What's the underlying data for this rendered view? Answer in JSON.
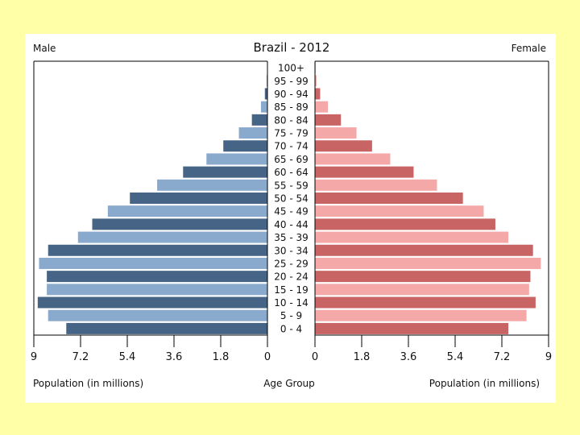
{
  "chart_data": {
    "type": "bar",
    "title": "Brazil - 2012",
    "left_label": "Male",
    "right_label": "Female",
    "xlabel_left": "Population (in millions)",
    "xlabel_center": "Age Group",
    "xlabel_right": "Population (in millions)",
    "xlim": [
      0,
      9
    ],
    "ticks": [
      "9",
      "7.2",
      "5.4",
      "3.6",
      "1.8",
      "0"
    ],
    "ticks_right": [
      "0",
      "1.8",
      "3.6",
      "5.4",
      "7.2",
      "9"
    ],
    "categories": [
      "0 - 4",
      "5 - 9",
      "10 - 14",
      "15 - 19",
      "20 - 24",
      "25 - 29",
      "30 - 34",
      "35 - 39",
      "40 - 44",
      "45 - 49",
      "50 - 54",
      "55 - 59",
      "60 - 64",
      "65 - 69",
      "70 - 74",
      "75 - 79",
      "80 - 84",
      "85 - 89",
      "90 - 94",
      "95 - 99",
      "100+"
    ],
    "series": [
      {
        "name": "Male",
        "values": [
          7.75,
          8.45,
          8.85,
          8.5,
          8.5,
          8.8,
          8.45,
          7.3,
          6.75,
          6.15,
          5.3,
          4.25,
          3.25,
          2.35,
          1.7,
          1.1,
          0.6,
          0.25,
          0.1,
          0.03,
          0.01
        ]
      },
      {
        "name": "Female",
        "values": [
          7.45,
          8.15,
          8.5,
          8.25,
          8.3,
          8.7,
          8.4,
          7.45,
          6.95,
          6.5,
          5.7,
          4.7,
          3.8,
          2.9,
          2.2,
          1.6,
          1.0,
          0.5,
          0.2,
          0.06,
          0.02
        ]
      }
    ],
    "colors": {
      "male_dark": "#466586",
      "male_light": "#8aaacd",
      "female_dark": "#c86464",
      "female_light": "#f5a8a8",
      "background": "#ffffa8"
    },
    "grid": false
  }
}
